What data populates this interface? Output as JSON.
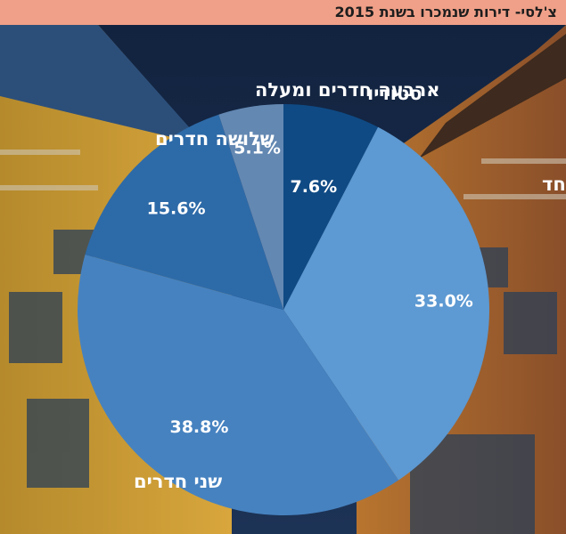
{
  "chart_data": {
    "type": "pie",
    "title": "צ'לסי- דירות שנמכרו בשנת 2015",
    "slices": [
      {
        "name": "סטודיו",
        "value": 7.6,
        "label": "7.6%",
        "color": "#0f4a84"
      },
      {
        "name": "חדר אחד",
        "value": 33.0,
        "label": "33.0%",
        "color": "#5d99d2"
      },
      {
        "name": "שני חדרים",
        "value": 38.8,
        "label": "38.8%",
        "color": "#4682c0"
      },
      {
        "name": "שלושה חדרים",
        "value": 15.6,
        "label": "15.6%",
        "color": "#2d6aa8"
      },
      {
        "name": "ארבעה חדרים ומעלה",
        "value": 5.1,
        "label": "5.1%",
        "color": "#6388b2"
      }
    ]
  }
}
